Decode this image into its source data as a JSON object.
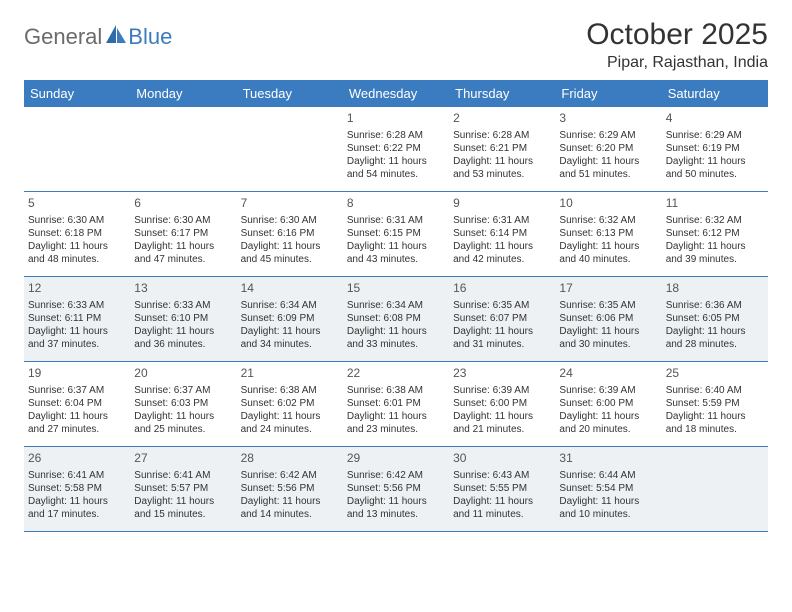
{
  "brand": {
    "word1": "General",
    "word2": "Blue"
  },
  "title": "October 2025",
  "location": "Pipar, Rajasthan, India",
  "colors": {
    "header_bg": "#3b7bbf",
    "header_text": "#ffffff",
    "shaded_bg": "#eef1f3",
    "rule": "#3b7bbf",
    "text": "#333333"
  },
  "days_of_week": [
    "Sunday",
    "Monday",
    "Tuesday",
    "Wednesday",
    "Thursday",
    "Friday",
    "Saturday"
  ],
  "weeks": [
    [
      {
        "n": "",
        "lines": []
      },
      {
        "n": "",
        "lines": []
      },
      {
        "n": "",
        "lines": []
      },
      {
        "n": "1",
        "lines": [
          "Sunrise: 6:28 AM",
          "Sunset: 6:22 PM",
          "Daylight: 11 hours",
          "and 54 minutes."
        ]
      },
      {
        "n": "2",
        "lines": [
          "Sunrise: 6:28 AM",
          "Sunset: 6:21 PM",
          "Daylight: 11 hours",
          "and 53 minutes."
        ]
      },
      {
        "n": "3",
        "lines": [
          "Sunrise: 6:29 AM",
          "Sunset: 6:20 PM",
          "Daylight: 11 hours",
          "and 51 minutes."
        ]
      },
      {
        "n": "4",
        "lines": [
          "Sunrise: 6:29 AM",
          "Sunset: 6:19 PM",
          "Daylight: 11 hours",
          "and 50 minutes."
        ]
      }
    ],
    [
      {
        "n": "5",
        "lines": [
          "Sunrise: 6:30 AM",
          "Sunset: 6:18 PM",
          "Daylight: 11 hours",
          "and 48 minutes."
        ]
      },
      {
        "n": "6",
        "lines": [
          "Sunrise: 6:30 AM",
          "Sunset: 6:17 PM",
          "Daylight: 11 hours",
          "and 47 minutes."
        ]
      },
      {
        "n": "7",
        "lines": [
          "Sunrise: 6:30 AM",
          "Sunset: 6:16 PM",
          "Daylight: 11 hours",
          "and 45 minutes."
        ]
      },
      {
        "n": "8",
        "lines": [
          "Sunrise: 6:31 AM",
          "Sunset: 6:15 PM",
          "Daylight: 11 hours",
          "and 43 minutes."
        ]
      },
      {
        "n": "9",
        "lines": [
          "Sunrise: 6:31 AM",
          "Sunset: 6:14 PM",
          "Daylight: 11 hours",
          "and 42 minutes."
        ]
      },
      {
        "n": "10",
        "lines": [
          "Sunrise: 6:32 AM",
          "Sunset: 6:13 PM",
          "Daylight: 11 hours",
          "and 40 minutes."
        ]
      },
      {
        "n": "11",
        "lines": [
          "Sunrise: 6:32 AM",
          "Sunset: 6:12 PM",
          "Daylight: 11 hours",
          "and 39 minutes."
        ]
      }
    ],
    [
      {
        "n": "12",
        "lines": [
          "Sunrise: 6:33 AM",
          "Sunset: 6:11 PM",
          "Daylight: 11 hours",
          "and 37 minutes."
        ]
      },
      {
        "n": "13",
        "lines": [
          "Sunrise: 6:33 AM",
          "Sunset: 6:10 PM",
          "Daylight: 11 hours",
          "and 36 minutes."
        ]
      },
      {
        "n": "14",
        "lines": [
          "Sunrise: 6:34 AM",
          "Sunset: 6:09 PM",
          "Daylight: 11 hours",
          "and 34 minutes."
        ]
      },
      {
        "n": "15",
        "lines": [
          "Sunrise: 6:34 AM",
          "Sunset: 6:08 PM",
          "Daylight: 11 hours",
          "and 33 minutes."
        ]
      },
      {
        "n": "16",
        "lines": [
          "Sunrise: 6:35 AM",
          "Sunset: 6:07 PM",
          "Daylight: 11 hours",
          "and 31 minutes."
        ]
      },
      {
        "n": "17",
        "lines": [
          "Sunrise: 6:35 AM",
          "Sunset: 6:06 PM",
          "Daylight: 11 hours",
          "and 30 minutes."
        ]
      },
      {
        "n": "18",
        "lines": [
          "Sunrise: 6:36 AM",
          "Sunset: 6:05 PM",
          "Daylight: 11 hours",
          "and 28 minutes."
        ]
      }
    ],
    [
      {
        "n": "19",
        "lines": [
          "Sunrise: 6:37 AM",
          "Sunset: 6:04 PM",
          "Daylight: 11 hours",
          "and 27 minutes."
        ]
      },
      {
        "n": "20",
        "lines": [
          "Sunrise: 6:37 AM",
          "Sunset: 6:03 PM",
          "Daylight: 11 hours",
          "and 25 minutes."
        ]
      },
      {
        "n": "21",
        "lines": [
          "Sunrise: 6:38 AM",
          "Sunset: 6:02 PM",
          "Daylight: 11 hours",
          "and 24 minutes."
        ]
      },
      {
        "n": "22",
        "lines": [
          "Sunrise: 6:38 AM",
          "Sunset: 6:01 PM",
          "Daylight: 11 hours",
          "and 23 minutes."
        ]
      },
      {
        "n": "23",
        "lines": [
          "Sunrise: 6:39 AM",
          "Sunset: 6:00 PM",
          "Daylight: 11 hours",
          "and 21 minutes."
        ]
      },
      {
        "n": "24",
        "lines": [
          "Sunrise: 6:39 AM",
          "Sunset: 6:00 PM",
          "Daylight: 11 hours",
          "and 20 minutes."
        ]
      },
      {
        "n": "25",
        "lines": [
          "Sunrise: 6:40 AM",
          "Sunset: 5:59 PM",
          "Daylight: 11 hours",
          "and 18 minutes."
        ]
      }
    ],
    [
      {
        "n": "26",
        "lines": [
          "Sunrise: 6:41 AM",
          "Sunset: 5:58 PM",
          "Daylight: 11 hours",
          "and 17 minutes."
        ]
      },
      {
        "n": "27",
        "lines": [
          "Sunrise: 6:41 AM",
          "Sunset: 5:57 PM",
          "Daylight: 11 hours",
          "and 15 minutes."
        ]
      },
      {
        "n": "28",
        "lines": [
          "Sunrise: 6:42 AM",
          "Sunset: 5:56 PM",
          "Daylight: 11 hours",
          "and 14 minutes."
        ]
      },
      {
        "n": "29",
        "lines": [
          "Sunrise: 6:42 AM",
          "Sunset: 5:56 PM",
          "Daylight: 11 hours",
          "and 13 minutes."
        ]
      },
      {
        "n": "30",
        "lines": [
          "Sunrise: 6:43 AM",
          "Sunset: 5:55 PM",
          "Daylight: 11 hours",
          "and 11 minutes."
        ]
      },
      {
        "n": "31",
        "lines": [
          "Sunrise: 6:44 AM",
          "Sunset: 5:54 PM",
          "Daylight: 11 hours",
          "and 10 minutes."
        ]
      },
      {
        "n": "",
        "lines": []
      }
    ]
  ],
  "shaded_week_indices": [
    2,
    4
  ]
}
